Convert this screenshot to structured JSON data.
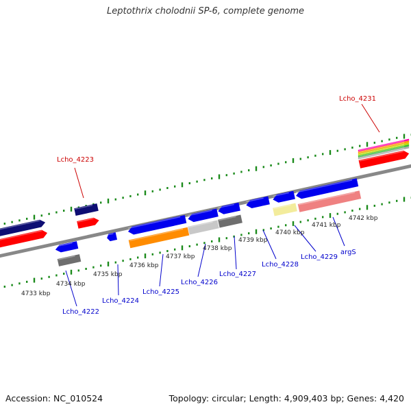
{
  "title": "Leptothrix cholodnii SP-6, complete genome",
  "footer": {
    "accession": "Accession: NC_010524",
    "topology": "Topology: circular; Length: 4,909,403 bp; Genes: 4,420"
  },
  "ticks": [
    "4733 kbp",
    "4734 kbp",
    "4735 kbp",
    "4736 kbp",
    "4737 kbp",
    "4738 kbp",
    "4739 kbp",
    "4740 kbp",
    "4741 kbp",
    "4742 kbp"
  ],
  "gene_labels": [
    "Lcho_4222",
    "Lcho_4223",
    "Lcho_4224",
    "Lcho_4225",
    "Lcho_4226",
    "Lcho_4227",
    "Lcho_4228",
    "Lcho_4229",
    "argS",
    "Lcho_4231"
  ],
  "colors": {
    "cds_forward": "#0000ee",
    "cds_reverse_dark": "#0d0d73",
    "rna_red": "#ff0000",
    "orange": "#ff8c00",
    "light_gray": "#c8c8c8",
    "dark_gray": "#6e6e6e",
    "pale_yellow": "#f3ec9c",
    "salmon": "#ef8181",
    "backbone": "#888888",
    "tick_green": "#1a8a1a",
    "label_blue": "#0000cc",
    "label_red": "#cc0000"
  }
}
